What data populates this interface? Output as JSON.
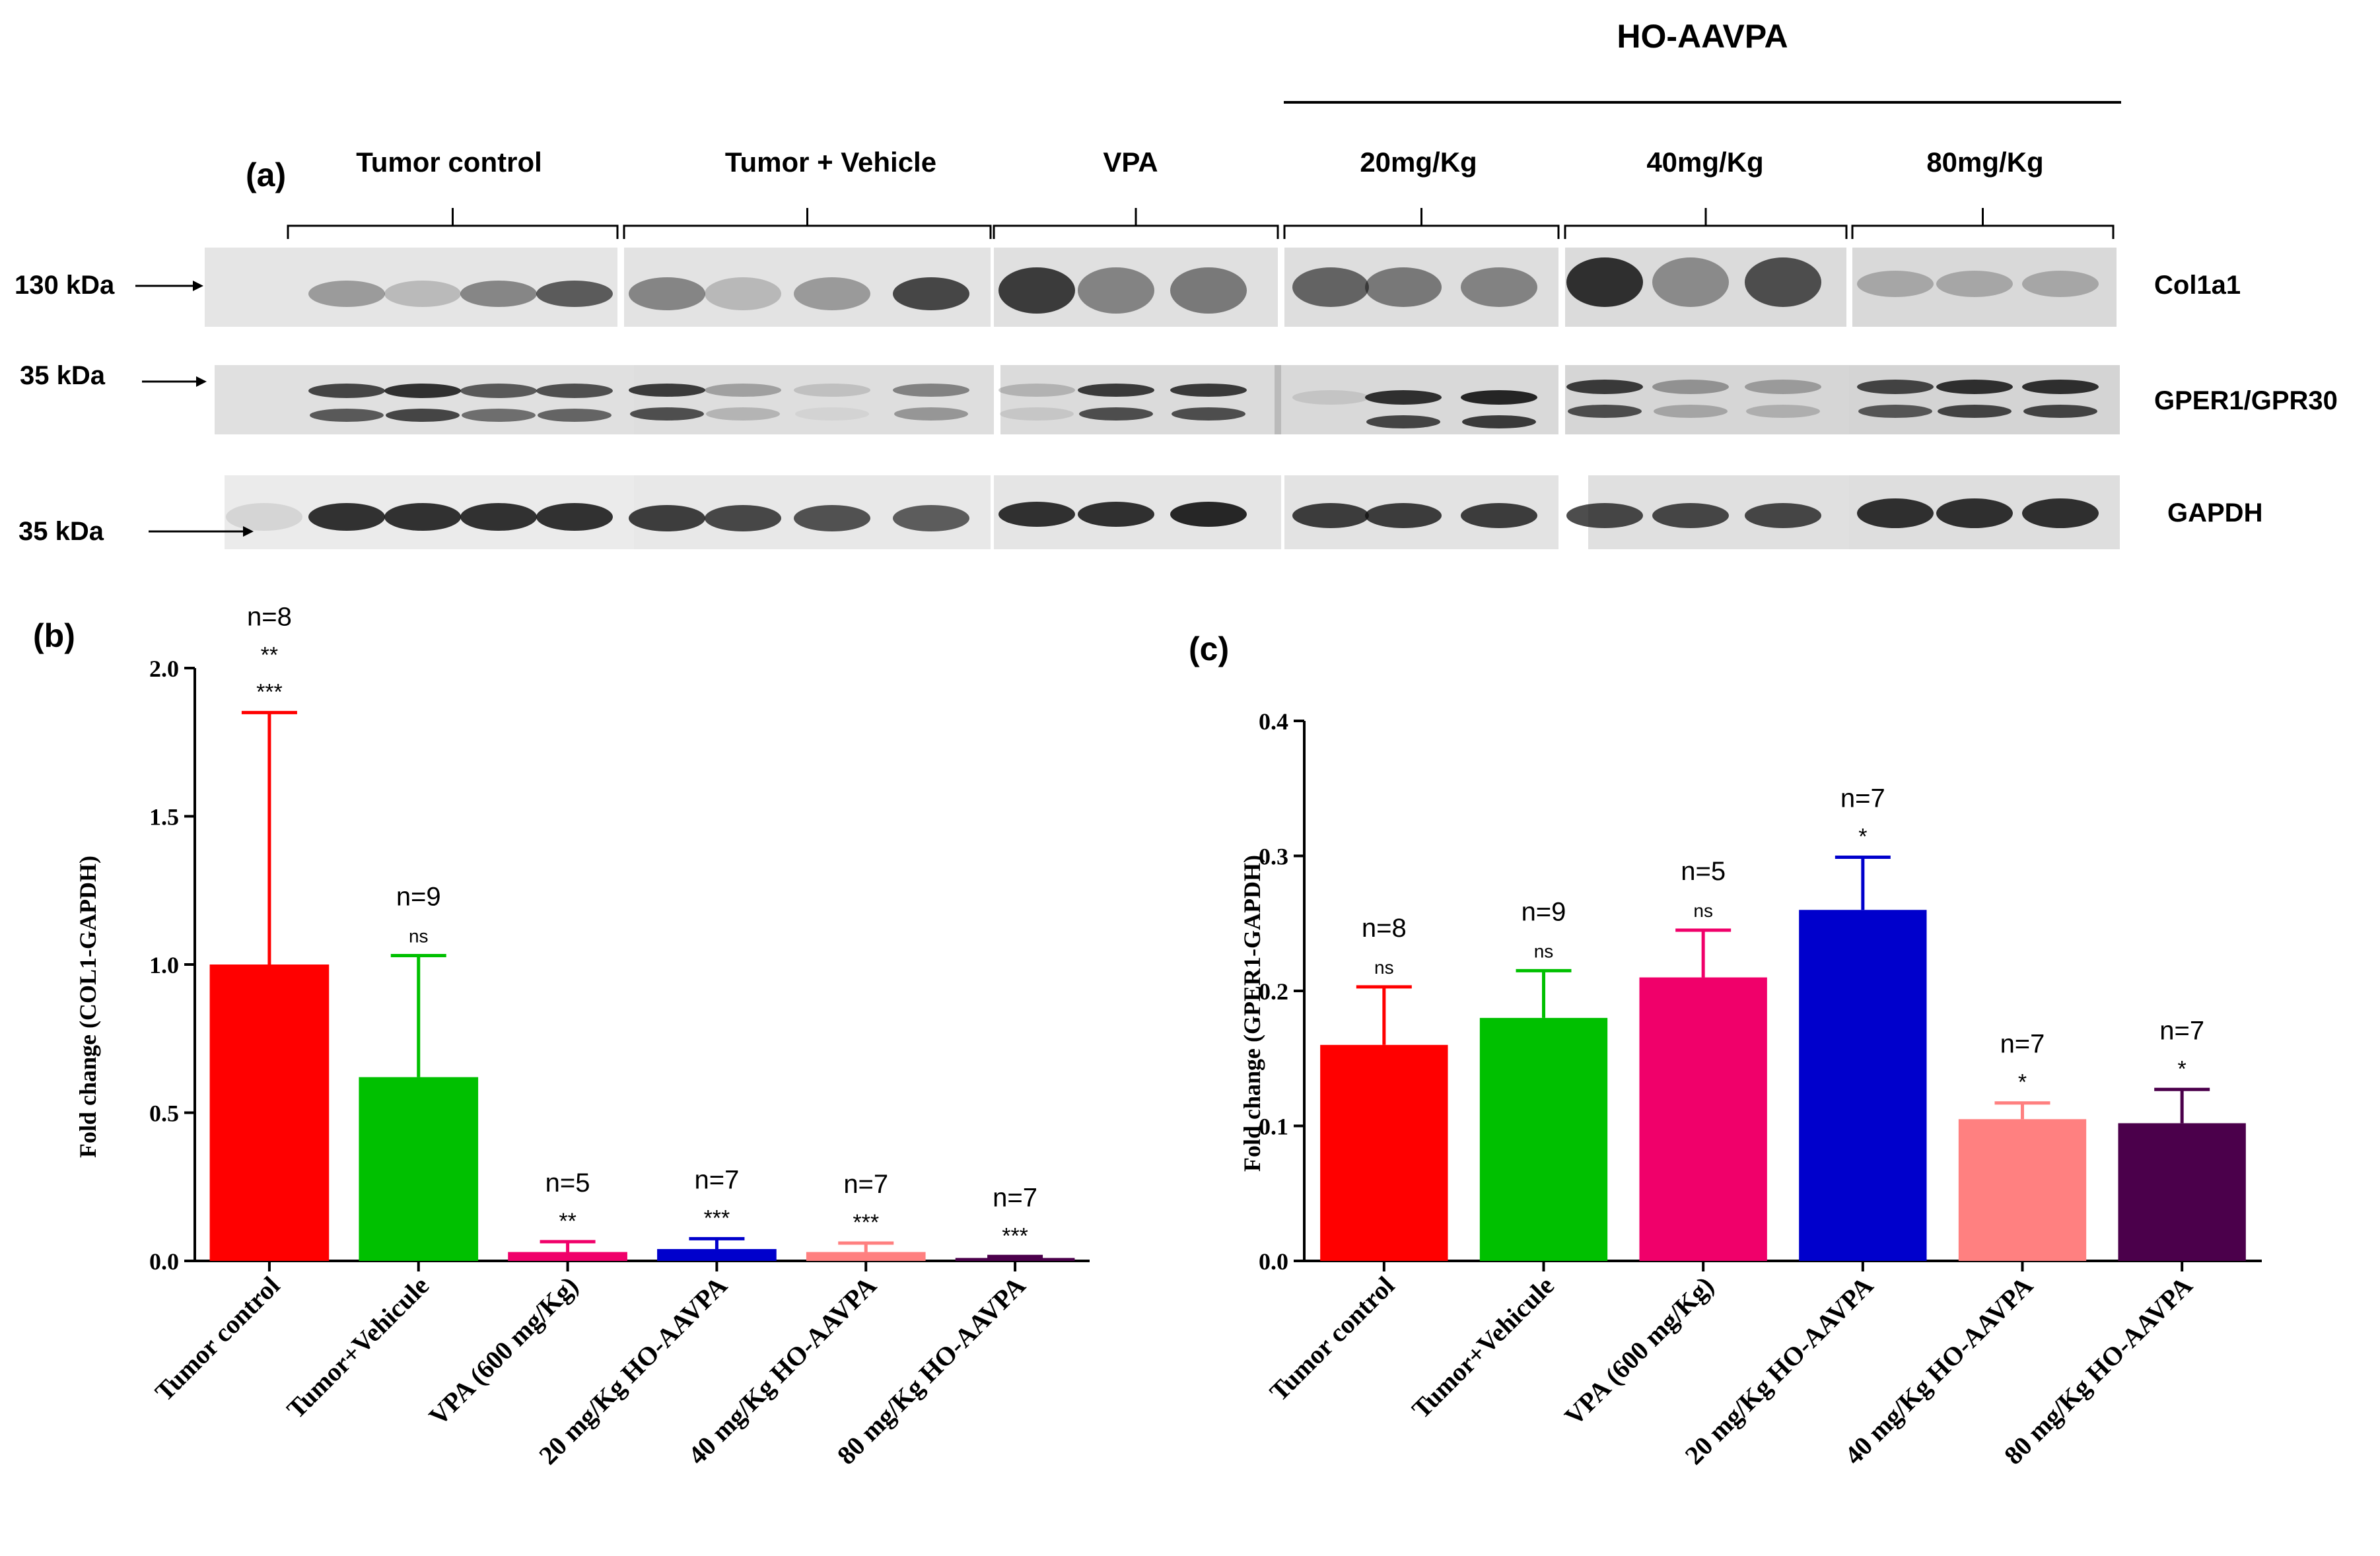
{
  "panel_a": {
    "label": "(a)",
    "header": "HO-AAVPA",
    "groups": [
      "Tumor control",
      "Tumor + Vehicle",
      "VPA",
      "20mg/Kg",
      "40mg/Kg",
      "80mg/Kg"
    ],
    "blots": [
      {
        "name": "Col1a1",
        "size": "130 kDa"
      },
      {
        "name": "GPER1/GPR30",
        "size": "35 kDa"
      },
      {
        "name": "GAPDH",
        "size": "35 kDa"
      }
    ]
  },
  "chart_data": [
    {
      "panel": "(b)",
      "type": "bar",
      "ylabel": "Fold change (COL1-GAPDH)",
      "ylim": [
        0,
        2.0
      ],
      "yticks": [
        "0.0",
        "0.5",
        "1.0",
        "1.5",
        "2.0"
      ],
      "categories": [
        "Tumor control",
        "Tumor+Vehicule",
        "VPA (600 mg/Kg)",
        "20 mg/Kg HO-AAVPA",
        "40 mg/Kg HO-AAVPA",
        "80 mg/Kg HO-AAVPA"
      ],
      "values": [
        1.0,
        0.62,
        0.03,
        0.04,
        0.03,
        0.01
      ],
      "errors": [
        0.85,
        0.41,
        0.035,
        0.035,
        0.03,
        0.005
      ],
      "n_labels": [
        "n=8",
        "n=9",
        "n=5",
        "n=7",
        "n=7",
        "n=7"
      ],
      "significance": [
        [
          "**",
          "***"
        ],
        [
          "ns"
        ],
        [
          "**"
        ],
        [
          "***"
        ],
        [
          "***"
        ],
        [
          "***"
        ]
      ],
      "colors": [
        "#ff0000",
        "#00c000",
        "#f0006a",
        "#0000cc",
        "#ff8080",
        "#4b004b"
      ]
    },
    {
      "panel": "(c)",
      "type": "bar",
      "ylabel": "Fold change (GPER1-GAPDH)",
      "ylim": [
        0,
        0.4
      ],
      "yticks": [
        "0.0",
        "0.1",
        "0.2",
        "0.3",
        "0.4"
      ],
      "categories": [
        "Tumor control",
        "Tumor+Vehicule",
        "VPA (600 mg/Kg)",
        "20 mg/Kg HO-AAVPA",
        "40 mg/Kg HO-AAVPA",
        "80 mg/Kg HO-AAVPA"
      ],
      "values": [
        0.16,
        0.18,
        0.21,
        0.26,
        0.105,
        0.102
      ],
      "errors": [
        0.043,
        0.035,
        0.035,
        0.039,
        0.012,
        0.025
      ],
      "n_labels": [
        "n=8",
        "n=9",
        "n=5",
        "n=7",
        "n=7",
        "n=7"
      ],
      "significance": [
        [
          "ns"
        ],
        [
          "ns"
        ],
        [
          "ns"
        ],
        [
          "*"
        ],
        [
          "*"
        ],
        [
          "*"
        ]
      ],
      "colors": [
        "#ff0000",
        "#00c000",
        "#f0006a",
        "#0000cc",
        "#ff8080",
        "#4b004b"
      ]
    }
  ]
}
